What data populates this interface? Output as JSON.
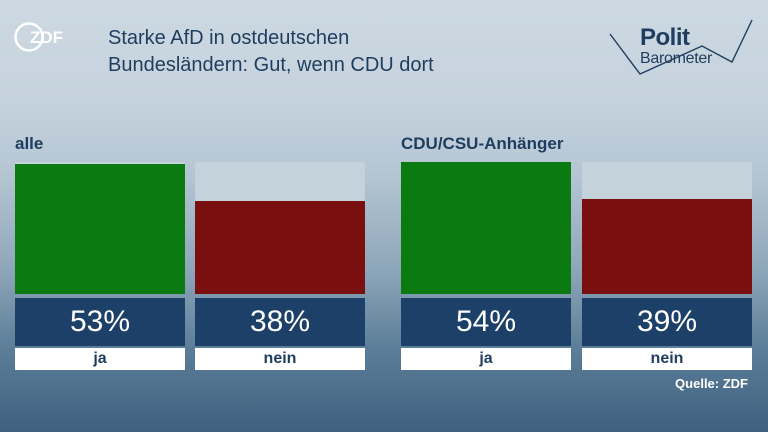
{
  "header": {
    "logo_text": "ZDF",
    "title_line1": "Starke AfD in ostdeutschen",
    "title_line2": "Bundesländern: Gut, wenn CDU dort",
    "brand_line1": "Polit",
    "brand_line2": "Barometer"
  },
  "colors": {
    "yes": "#0b7a11",
    "no": "#7a0f10",
    "value_box": "#1d4068",
    "text": "#1f3d5e"
  },
  "chart_data": [
    {
      "type": "bar",
      "title": "alle",
      "categories": [
        "ja",
        "nein"
      ],
      "values": [
        53,
        38
      ],
      "value_labels": [
        "53%",
        "38%"
      ],
      "colors": [
        "#0b7a11",
        "#7a0f10"
      ],
      "ylim": [
        0,
        54
      ],
      "grid": false
    },
    {
      "type": "bar",
      "title": "CDU/CSU-Anhänger",
      "categories": [
        "ja",
        "nein"
      ],
      "values": [
        54,
        39
      ],
      "value_labels": [
        "54%",
        "39%"
      ],
      "colors": [
        "#0b7a11",
        "#7a0f10"
      ],
      "ylim": [
        0,
        54
      ],
      "grid": false
    }
  ],
  "footer": {
    "source": "Quelle: ZDF"
  }
}
